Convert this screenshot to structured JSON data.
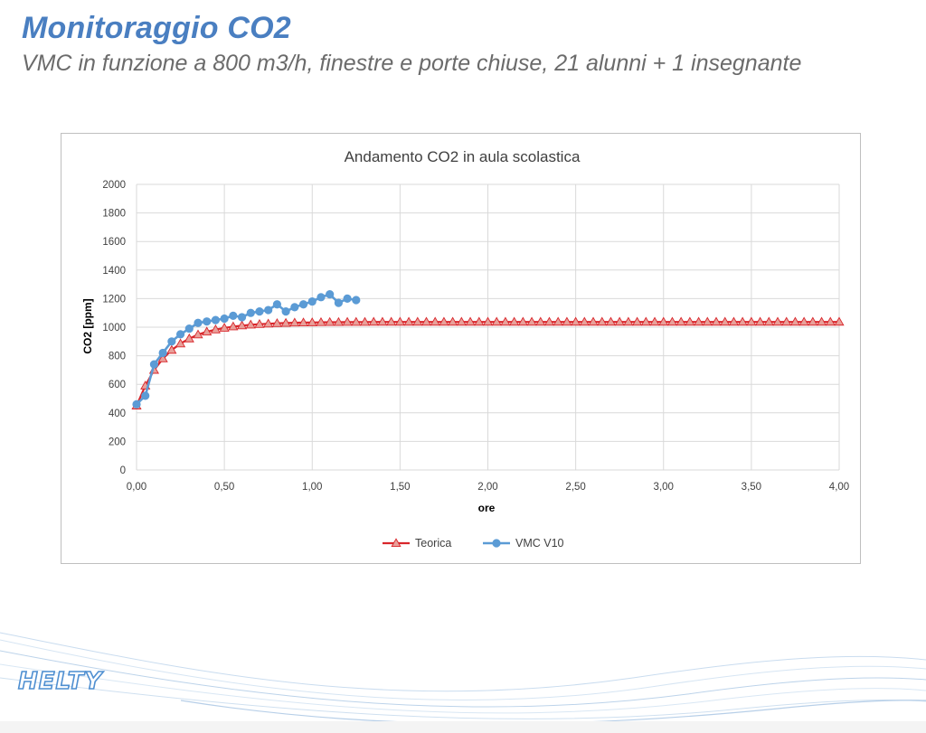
{
  "slide": {
    "title": "Monitoraggio CO2",
    "subtitle": "VMC in funzione a 800 m3/h, finestre e porte chiuse, 21 alunni + 1 insegnante",
    "logo_text": "HELTY"
  },
  "colors": {
    "title": "#4a7fc1",
    "teorica": "#d9262b",
    "teorica_marker_fill": "#e8a09a",
    "vmc": "#5b9bd5",
    "grid": "#d9d9d9"
  },
  "chart_data": {
    "type": "line",
    "title": "Andamento CO2 in aula scolastica",
    "xlabel": "ore",
    "ylabel": "CO2 [ppm]",
    "xlim": [
      0,
      4
    ],
    "ylim": [
      0,
      2000
    ],
    "x_ticks": [
      "0,00",
      "0,50",
      "1,00",
      "1,50",
      "2,00",
      "2,50",
      "3,00",
      "3,50",
      "4,00"
    ],
    "y_ticks": [
      "0",
      "200",
      "400",
      "600",
      "800",
      "1000",
      "1200",
      "1400",
      "1600",
      "1800",
      "2000"
    ],
    "grid": true,
    "legend_position": "bottom",
    "series": [
      {
        "name": "Teorica",
        "marker": "triangle",
        "x": [
          0.0,
          0.05,
          0.1,
          0.15,
          0.2,
          0.25,
          0.3,
          0.35,
          0.4,
          0.45,
          0.5,
          0.55,
          0.6,
          0.65,
          0.7,
          0.75,
          0.8,
          0.85,
          0.9,
          0.95,
          1.0,
          1.05,
          1.1,
          1.15,
          1.2,
          1.25,
          1.3,
          1.35,
          1.4,
          1.45,
          1.5,
          1.55,
          1.6,
          1.65,
          1.7,
          1.75,
          1.8,
          1.85,
          1.9,
          1.95,
          2.0,
          2.05,
          2.1,
          2.15,
          2.2,
          2.25,
          2.3,
          2.35,
          2.4,
          2.45,
          2.5,
          2.55,
          2.6,
          2.65,
          2.7,
          2.75,
          2.8,
          2.85,
          2.9,
          2.95,
          3.0,
          3.05,
          3.1,
          3.15,
          3.2,
          3.25,
          3.3,
          3.35,
          3.4,
          3.45,
          3.5,
          3.55,
          3.6,
          3.65,
          3.7,
          3.75,
          3.8,
          3.85,
          3.9,
          3.95,
          4.0
        ],
        "values": [
          450,
          590,
          700,
          780,
          840,
          885,
          920,
          948,
          968,
          983,
          995,
          1004,
          1011,
          1017,
          1021,
          1024,
          1027,
          1029,
          1031,
          1032,
          1033,
          1034,
          1035,
          1035,
          1036,
          1036,
          1036,
          1037,
          1037,
          1037,
          1037,
          1037,
          1037,
          1037,
          1037,
          1037,
          1037,
          1037,
          1037,
          1037,
          1037,
          1037,
          1037,
          1037,
          1037,
          1037,
          1037,
          1037,
          1037,
          1037,
          1037,
          1037,
          1037,
          1037,
          1037,
          1037,
          1037,
          1037,
          1037,
          1037,
          1037,
          1037,
          1037,
          1037,
          1037,
          1037,
          1037,
          1037,
          1037,
          1037,
          1037,
          1037,
          1037,
          1037,
          1037,
          1037,
          1037,
          1037,
          1037,
          1037,
          1037
        ]
      },
      {
        "name": "VMC V10",
        "marker": "circle",
        "x": [
          0.0,
          0.05,
          0.1,
          0.15,
          0.2,
          0.25,
          0.3,
          0.35,
          0.4,
          0.45,
          0.5,
          0.55,
          0.6,
          0.65,
          0.7,
          0.75,
          0.8,
          0.85,
          0.9,
          0.95,
          1.0,
          1.05,
          1.1,
          1.15,
          1.2,
          1.25
        ],
        "values": [
          460,
          520,
          740,
          820,
          900,
          950,
          990,
          1030,
          1040,
          1050,
          1060,
          1080,
          1070,
          1100,
          1110,
          1120,
          1160,
          1110,
          1140,
          1160,
          1180,
          1210,
          1230,
          1170,
          1200,
          1190
        ]
      }
    ]
  }
}
